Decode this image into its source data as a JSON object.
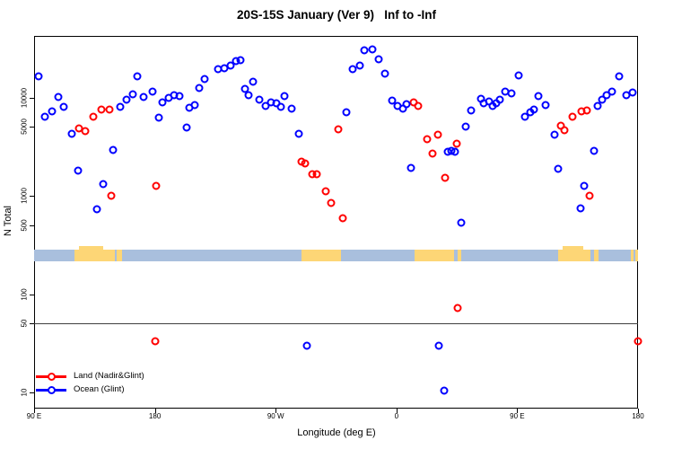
{
  "chart_data": {
    "type": "scatter",
    "title": "20S-15S January (Ver 9)   Inf to -Inf",
    "xlabel": "Longitude (deg E)",
    "ylabel": "N Total",
    "x_axis": {
      "range_deg": [
        90,
        540
      ],
      "note": "longitude wraps eastward: 90E,180,90W,0,90E,180",
      "ticks": [
        {
          "lon": 90,
          "label": "90 E"
        },
        {
          "lon": 180,
          "label": "180"
        },
        {
          "lon": 270,
          "label": "90 W"
        },
        {
          "lon": 360,
          "label": "0"
        },
        {
          "lon": 450,
          "label": "90 E"
        },
        {
          "lon": 540,
          "label": "180"
        }
      ]
    },
    "y_axis": {
      "scale": "log",
      "range": [
        6.5,
        40000
      ],
      "ticks": [
        {
          "value": 10000,
          "label": "10000"
        },
        {
          "value": 5000,
          "label": "5000"
        },
        {
          "value": 1000,
          "label": "1000"
        },
        {
          "value": 500,
          "label": "500"
        },
        {
          "value": 100,
          "label": "100"
        },
        {
          "value": 50,
          "label": "50"
        },
        {
          "value": 10,
          "label": "10"
        }
      ]
    },
    "reference_line": {
      "value": 50,
      "color": "#404040"
    },
    "legend": [
      {
        "label": "Land (Nadir&Glint)",
        "color": "#ff0000"
      },
      {
        "label": "Ocean (Glint)",
        "color": "#0000ff"
      }
    ],
    "map_strip": {
      "ocean_color": "#a9bfdd",
      "land_color": "#fdd676",
      "land_patches": [
        {
          "from": 120.0,
          "to": 150.5
        },
        {
          "from": 151.5,
          "to": 155.5
        },
        {
          "from": 289.3,
          "to": 318.7
        },
        {
          "from": 373.5,
          "to": 403.0
        },
        {
          "from": 405.6,
          "to": 408.6
        },
        {
          "from": 480.5,
          "to": 504.5
        },
        {
          "from": 507.2,
          "to": 510.5
        },
        {
          "from": 534.6,
          "to": 536.6
        },
        {
          "from": 537.9,
          "to": 540.0
        }
      ],
      "tall_patches": [
        {
          "from": 123.4,
          "to": 141.5
        },
        {
          "from": 483.8,
          "to": 499.2
        }
      ]
    },
    "series": [
      {
        "name": "Land (Nadir&Glint)",
        "color": "#ff0000",
        "points": [
          [
            123.4,
            4860
          ],
          [
            128.3,
            4530
          ],
          [
            133.9,
            6330
          ],
          [
            140.1,
            7560
          ],
          [
            146.1,
            7500
          ],
          [
            147.4,
            1000
          ],
          [
            180.8,
            1250
          ],
          [
            289.0,
            2240
          ],
          [
            291.7,
            2150
          ],
          [
            297.0,
            1670
          ],
          [
            300.3,
            1670
          ],
          [
            307.0,
            1120
          ],
          [
            311.0,
            840
          ],
          [
            319.7,
            590
          ],
          [
            317.0,
            4700
          ],
          [
            372.9,
            8920
          ],
          [
            376.2,
            8130
          ],
          [
            382.6,
            3800
          ],
          [
            390.7,
            4170
          ],
          [
            386.9,
            2690
          ],
          [
            396.3,
            1520
          ],
          [
            405.2,
            3390
          ],
          [
            482.6,
            5130
          ],
          [
            485.3,
            4680
          ],
          [
            491.3,
            6310
          ],
          [
            497.9,
            7240
          ],
          [
            501.9,
            7410
          ],
          [
            504.1,
            995
          ],
          [
            180.3,
            33
          ],
          [
            405.4,
            72
          ],
          [
            540.0,
            33
          ]
        ]
      },
      {
        "name": "Ocean (Glint)",
        "color": "#0000ff",
        "points": [
          [
            93.1,
            16500
          ],
          [
            97.8,
            6300
          ],
          [
            103.4,
            7250
          ],
          [
            108.2,
            10150
          ],
          [
            112.2,
            8100
          ],
          [
            117.8,
            4230
          ],
          [
            122.9,
            1820
          ],
          [
            136.5,
            730
          ],
          [
            141.6,
            1310
          ],
          [
            149.0,
            2910
          ],
          [
            154.1,
            7950
          ],
          [
            159.0,
            9460
          ],
          [
            163.4,
            10700
          ],
          [
            167.2,
            16400
          ],
          [
            171.4,
            10100
          ],
          [
            178.1,
            11350
          ],
          [
            182.8,
            6170
          ],
          [
            185.5,
            9000
          ],
          [
            190.1,
            10000
          ],
          [
            194.2,
            10650
          ],
          [
            198.2,
            10400
          ],
          [
            203.5,
            4900
          ],
          [
            205.5,
            7900
          ],
          [
            209.5,
            8450
          ],
          [
            212.9,
            12600
          ],
          [
            216.9,
            15500
          ],
          [
            226.9,
            19200
          ],
          [
            231.5,
            19600
          ],
          [
            236.2,
            20900
          ],
          [
            240.2,
            23200
          ],
          [
            243.6,
            23700
          ],
          [
            246.9,
            12100
          ],
          [
            249.6,
            10650
          ],
          [
            253.4,
            14400
          ],
          [
            257.6,
            9400
          ],
          [
            262.2,
            8130
          ],
          [
            266.3,
            9000
          ],
          [
            270.3,
            8700
          ],
          [
            273.6,
            8000
          ],
          [
            276.3,
            10400
          ],
          [
            281.6,
            7750
          ],
          [
            287.0,
            4310
          ],
          [
            322.4,
            7000
          ],
          [
            327.7,
            19200
          ],
          [
            332.4,
            20900
          ],
          [
            336.2,
            30000
          ],
          [
            342.4,
            30700
          ],
          [
            346.8,
            24300
          ],
          [
            351.3,
            17500
          ],
          [
            356.6,
            9330
          ],
          [
            360.6,
            8130
          ],
          [
            364.6,
            7760
          ],
          [
            367.3,
            8510
          ],
          [
            370.6,
            1910
          ],
          [
            398.0,
            2820
          ],
          [
            400.9,
            2880
          ],
          [
            403.6,
            2820
          ],
          [
            408.5,
            535
          ],
          [
            411.4,
            5010
          ],
          [
            415.8,
            7400
          ],
          [
            423.0,
            9770
          ],
          [
            425.2,
            8710
          ],
          [
            429.2,
            9120
          ],
          [
            431.9,
            8130
          ],
          [
            434.5,
            8710
          ],
          [
            436.7,
            9550
          ],
          [
            440.8,
            11480
          ],
          [
            445.7,
            10960
          ],
          [
            451.4,
            16600
          ],
          [
            455.9,
            6310
          ],
          [
            459.7,
            7080
          ],
          [
            462.6,
            7590
          ],
          [
            465.7,
            10230
          ],
          [
            470.8,
            8320
          ],
          [
            477.5,
            4170
          ],
          [
            480.4,
            1860
          ],
          [
            497.4,
            740
          ],
          [
            499.7,
            1260
          ],
          [
            507.5,
            2880
          ],
          [
            510.2,
            8130
          ],
          [
            513.2,
            9550
          ],
          [
            516.9,
            10470
          ],
          [
            520.9,
            11500
          ],
          [
            525.8,
            16300
          ],
          [
            531.3,
            10470
          ],
          [
            536.0,
            11220
          ],
          [
            293.2,
            30
          ],
          [
            391.3,
            30
          ],
          [
            395.7,
            10.5
          ]
        ]
      }
    ]
  }
}
